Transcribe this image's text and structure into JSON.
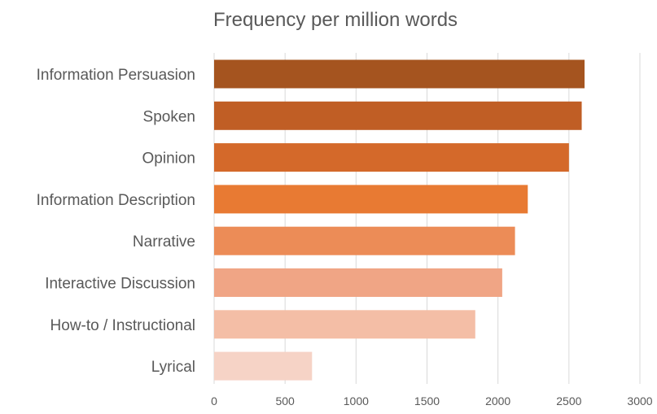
{
  "chart_data": {
    "type": "bar",
    "orientation": "horizontal",
    "title": "Frequency per million words",
    "xlabel": "",
    "ylabel": "",
    "xlim": [
      0,
      3000
    ],
    "ticks": [
      0,
      500,
      1000,
      1500,
      2000,
      2500,
      3000
    ],
    "grid": true,
    "legend": "none",
    "categories": [
      "Information Persuasion",
      "Spoken",
      "Opinion",
      "Information Description",
      "Narrative",
      "Interactive Discussion",
      "How-to / Instructional",
      "Lyrical"
    ],
    "values": [
      2610,
      2590,
      2500,
      2210,
      2120,
      2030,
      1840,
      690
    ],
    "colors": [
      "#a5541f",
      "#c05e25",
      "#d4692a",
      "#e87a33",
      "#ec8c57",
      "#f0a585",
      "#f4bea6",
      "#f6d3c6"
    ]
  }
}
